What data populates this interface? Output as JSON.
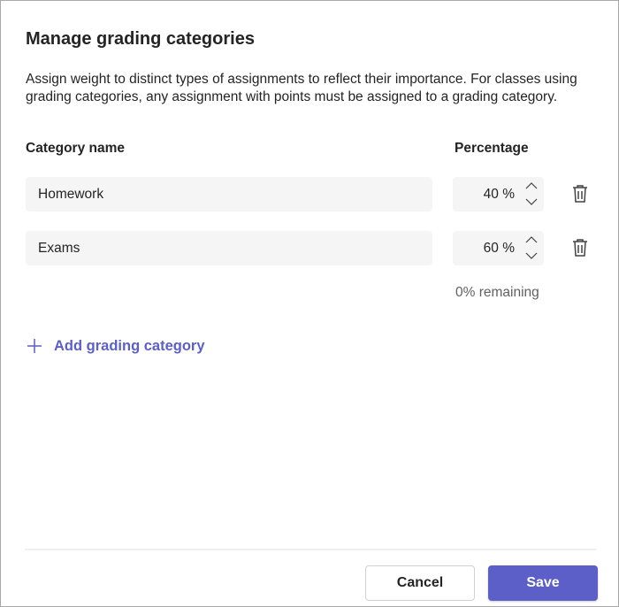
{
  "dialog": {
    "title": "Manage grading categories",
    "description": "Assign weight to distinct types of assignments to reflect their importance. For classes using grading categories, any assignment with points must be assigned to a grading category.",
    "headers": {
      "name": "Category name",
      "percentage": "Percentage"
    },
    "categories": [
      {
        "name": "Homework",
        "percentage": "40 %"
      },
      {
        "name": "Exams",
        "percentage": "60 %"
      }
    ],
    "remaining": "0% remaining",
    "add_label": "Add grading category",
    "cancel_label": "Cancel",
    "save_label": "Save",
    "accent_color": "#5b5fc7"
  }
}
